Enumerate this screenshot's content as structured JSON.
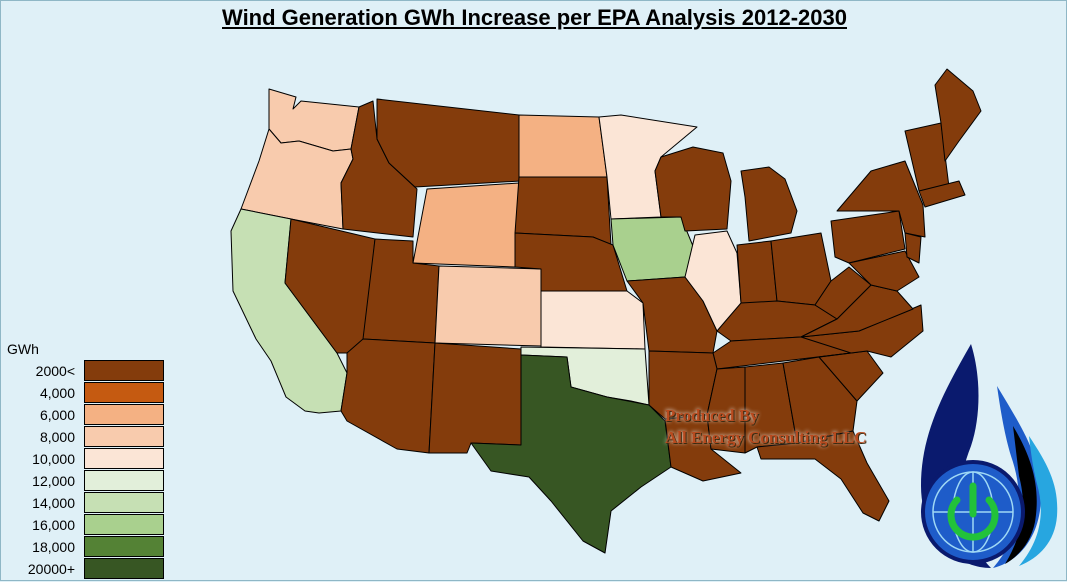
{
  "title": "Wind Generation GWh Increase per EPA Analysis 2012-2030",
  "legend": {
    "unit": "GWh",
    "items": [
      {
        "label": "2000<",
        "color": "#843c0c"
      },
      {
        "label": "4,000",
        "color": "#c55a11"
      },
      {
        "label": "6,000",
        "color": "#f4b183"
      },
      {
        "label": "8,000",
        "color": "#f8cbad"
      },
      {
        "label": "10,000",
        "color": "#fbe5d6"
      },
      {
        "label": "12,000",
        "color": "#e2efda"
      },
      {
        "label": "14,000",
        "color": "#c6e0b4"
      },
      {
        "label": "16,000",
        "color": "#a9d08e"
      },
      {
        "label": "18,000",
        "color": "#548235"
      },
      {
        "label": "20000+",
        "color": "#375623"
      }
    ]
  },
  "credit": {
    "line1": "Produced By",
    "line2": "All Energy Consulting LLC"
  },
  "colors": {
    "background": "#dff0f7",
    "border": "#000000",
    "logo_navy": "#0a1a6e",
    "logo_blue": "#1e5cc9",
    "logo_cyan": "#27a6e0",
    "logo_green": "#22c23a"
  }
}
